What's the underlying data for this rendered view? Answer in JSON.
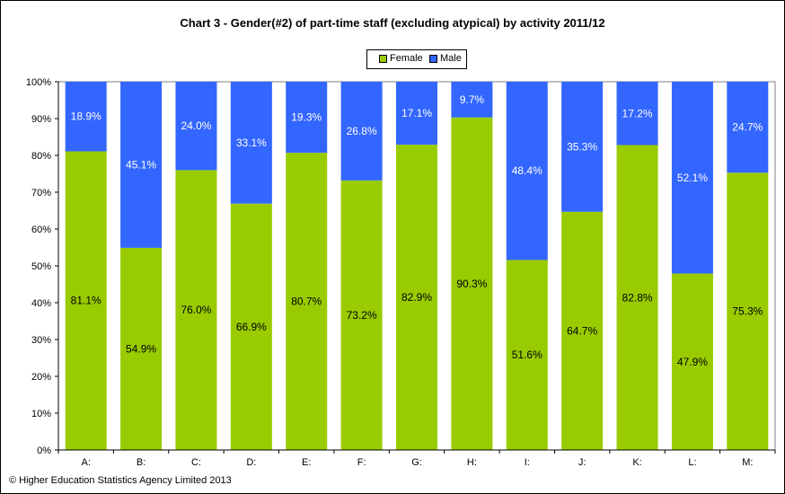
{
  "title": "Chart 3 - Gender(#2) of part-time staff (excluding atypical) by activity 2011/12",
  "copyright": "© Higher Education Statistics Agency Limited 2013",
  "colors": {
    "female": "#99cc00",
    "male": "#3366ff"
  },
  "legend": [
    {
      "name": "Female",
      "color": "#99cc00"
    },
    {
      "name": "Male",
      "color": "#3366ff"
    }
  ],
  "chart_data": {
    "type": "bar",
    "stacked": true,
    "percent": true,
    "title": "Chart 3 - Gender(#2) of part-time staff (excluding atypical) by activity 2011/12",
    "categories": [
      "A:",
      "B:",
      "C:",
      "D:",
      "E:",
      "F:",
      "G:",
      "H:",
      "I:",
      "J:",
      "K:",
      "L:",
      "M:"
    ],
    "series": [
      {
        "name": "Female",
        "values": [
          81.1,
          54.9,
          76.0,
          66.9,
          80.7,
          73.2,
          82.9,
          90.3,
          51.6,
          64.7,
          82.8,
          47.9,
          75.3
        ]
      },
      {
        "name": "Male",
        "values": [
          18.9,
          45.1,
          24.0,
          33.1,
          19.3,
          26.8,
          17.1,
          9.7,
          48.4,
          35.3,
          17.2,
          52.1,
          24.7
        ]
      }
    ],
    "ylim": [
      0,
      100
    ],
    "yticks": [
      "0%",
      "10%",
      "20%",
      "30%",
      "40%",
      "50%",
      "60%",
      "70%",
      "80%",
      "90%",
      "100%"
    ],
    "grid": false,
    "legend_position": "top"
  }
}
